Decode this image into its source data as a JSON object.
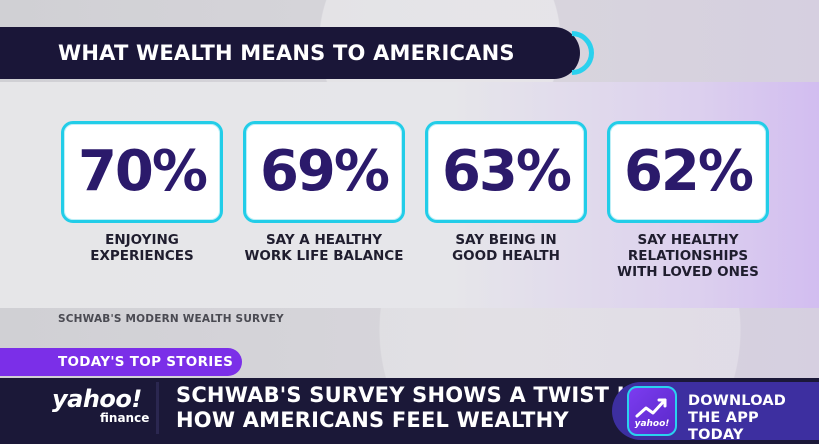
{
  "graphic": {
    "title": "WHAT WEALTH MEANS TO AMERICANS",
    "stats": [
      {
        "value": "70%",
        "label": "ENJOYING\nEXPERIENCES"
      },
      {
        "value": "69%",
        "label": "SAY A HEALTHY\nWORK LIFE BALANCE"
      },
      {
        "value": "63%",
        "label": "SAY BEING IN\nGOOD HEALTH"
      },
      {
        "value": "62%",
        "label": "SAY HEALTHY\nRELATIONSHIPS\nWITH LOVED ONES"
      }
    ],
    "source": "SCHWAB'S MODERN WEALTH SURVEY"
  },
  "ticker": {
    "section_label": "TODAY'S TOP STORIES",
    "brand_yahoo": "yahoo!",
    "brand_finance": "finance",
    "headline": "SCHWAB'S SURVEY SHOWS A TWIST IN\nHOW AMERICANS FEEL WEALTHY",
    "app_icon_text": "yahoo!",
    "app_cta": "DOWNLOAD\nTHE APP TODAY"
  },
  "colors": {
    "accent_cyan": "#22cde8",
    "stat_purple": "#2b1a6b",
    "navy_bar": "#1b1838",
    "stories_purple": "#7b2fe8"
  },
  "icons": {
    "app_icon": "trend-chart-icon"
  }
}
